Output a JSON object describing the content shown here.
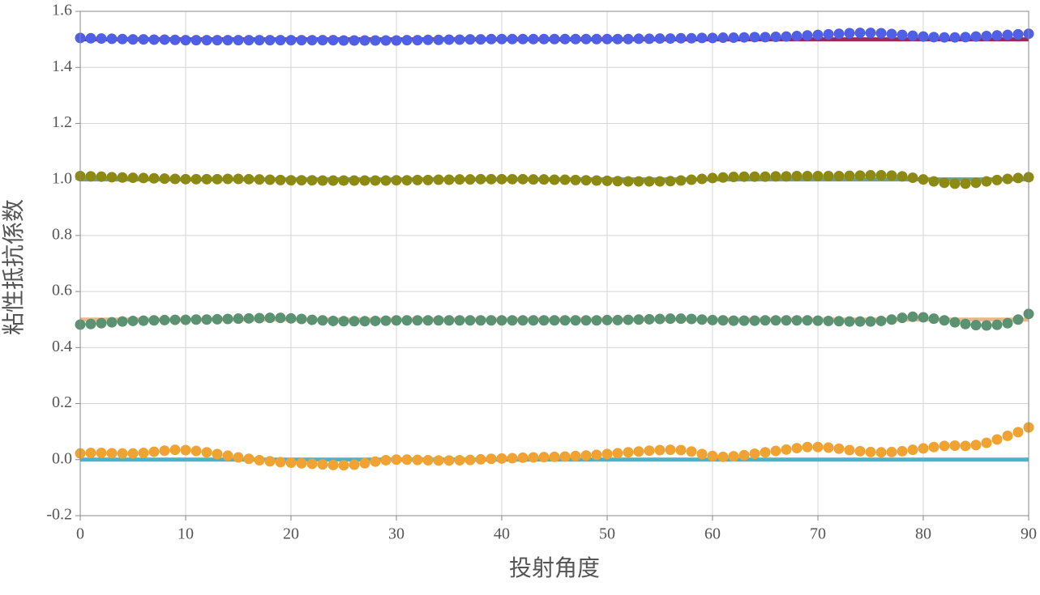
{
  "chart_data": {
    "type": "scatter",
    "x_label": "投射角度",
    "y_label": "粘性抵抗係数",
    "xlim": [
      0,
      90
    ],
    "xticks": [
      0,
      10,
      20,
      30,
      40,
      50,
      60,
      70,
      80,
      90
    ],
    "ylim": [
      -0.2,
      1.6
    ],
    "yticks": [
      -0.2,
      {
        "value": 0,
        "label": "0.0"
      },
      0.2,
      0.4,
      0.6,
      0.8,
      {
        "value": 1,
        "label": "1.0"
      },
      1.2,
      1.4,
      1.6
    ],
    "grid": true,
    "x": [
      0,
      1,
      2,
      3,
      4,
      5,
      6,
      7,
      8,
      9,
      10,
      11,
      12,
      13,
      14,
      15,
      16,
      17,
      18,
      19,
      20,
      21,
      22,
      23,
      24,
      25,
      26,
      27,
      28,
      29,
      30,
      31,
      32,
      33,
      34,
      35,
      36,
      37,
      38,
      39,
      40,
      41,
      42,
      43,
      44,
      45,
      46,
      47,
      48,
      49,
      50,
      51,
      52,
      53,
      54,
      55,
      56,
      57,
      58,
      59,
      60,
      61,
      62,
      63,
      64,
      65,
      66,
      67,
      68,
      69,
      70,
      71,
      72,
      73,
      74,
      75,
      76,
      77,
      78,
      79,
      80,
      81,
      82,
      83,
      84,
      85,
      86,
      87,
      88,
      89,
      90
    ],
    "series": [
      {
        "mode": "line",
        "color": "#9a2a5a",
        "x": [
          0,
          90
        ],
        "values": [
          1.5,
          1.5
        ]
      },
      {
        "mode": "line",
        "color": "#6f9e90",
        "x": [
          0,
          90
        ],
        "values": [
          1,
          1
        ]
      },
      {
        "mode": "line",
        "color": "#e8b88a",
        "x": [
          0,
          90
        ],
        "values": [
          0.5,
          0.5
        ]
      },
      {
        "mode": "line",
        "color": "#4db3c4",
        "x": [
          0,
          90
        ],
        "values": [
          0,
          0
        ]
      },
      {
        "mode": "markers",
        "color": "#5060e6",
        "values": [
          1.505,
          1.504,
          1.503,
          1.502,
          1.501,
          1.5,
          1.5,
          1.499,
          1.499,
          1.498,
          1.497,
          1.497,
          1.497,
          1.497,
          1.497,
          1.497,
          1.497,
          1.497,
          1.497,
          1.497,
          1.497,
          1.497,
          1.497,
          1.497,
          1.497,
          1.496,
          1.496,
          1.496,
          1.496,
          1.496,
          1.496,
          1.497,
          1.497,
          1.498,
          1.498,
          1.499,
          1.499,
          1.5,
          1.5,
          1.501,
          1.501,
          1.501,
          1.501,
          1.501,
          1.501,
          1.501,
          1.501,
          1.501,
          1.501,
          1.501,
          1.501,
          1.501,
          1.501,
          1.502,
          1.502,
          1.503,
          1.503,
          1.504,
          1.504,
          1.505,
          1.505,
          1.506,
          1.506,
          1.507,
          1.508,
          1.508,
          1.509,
          1.51,
          1.512,
          1.514,
          1.516,
          1.518,
          1.52,
          1.522,
          1.523,
          1.523,
          1.522,
          1.519,
          1.516,
          1.513,
          1.51,
          1.508,
          1.507,
          1.507,
          1.508,
          1.51,
          1.512,
          1.514,
          1.516,
          1.518,
          1.52
        ]
      },
      {
        "mode": "markers",
        "color": "#8c8a12",
        "values": [
          1.012,
          1.011,
          1.01,
          1.008,
          1.007,
          1.006,
          1.005,
          1.004,
          1.003,
          1.002,
          1.001,
          1.001,
          1.001,
          1.001,
          1.002,
          1.002,
          1.001,
          1,
          0.999,
          0.998,
          0.997,
          0.997,
          0.997,
          0.996,
          0.996,
          0.996,
          0.996,
          0.996,
          0.996,
          0.996,
          0.997,
          0.997,
          0.998,
          0.998,
          0.999,
          0.999,
          1,
          1,
          1.001,
          1.001,
          1.001,
          1.001,
          1.001,
          1,
          1,
          0.999,
          0.999,
          0.998,
          0.997,
          0.996,
          0.995,
          0.994,
          0.993,
          0.993,
          0.993,
          0.993,
          0.994,
          0.996,
          0.999,
          1.002,
          1.005,
          1.007,
          1.009,
          1.01,
          1.01,
          1.01,
          1.011,
          1.011,
          1.012,
          1.012,
          1.012,
          1.012,
          1.012,
          1.013,
          1.014,
          1.015,
          1.015,
          1.014,
          1.011,
          1.006,
          1,
          0.993,
          0.988,
          0.985,
          0.985,
          0.988,
          0.993,
          0.998,
          1.002,
          1.005,
          1.008
        ]
      },
      {
        "mode": "markers",
        "color": "#5a9272",
        "values": [
          0.482,
          0.484,
          0.487,
          0.49,
          0.493,
          0.495,
          0.496,
          0.497,
          0.498,
          0.499,
          0.499,
          0.5,
          0.5,
          0.501,
          0.502,
          0.503,
          0.504,
          0.505,
          0.506,
          0.506,
          0.504,
          0.502,
          0.499,
          0.497,
          0.495,
          0.494,
          0.494,
          0.494,
          0.495,
          0.496,
          0.497,
          0.497,
          0.497,
          0.497,
          0.497,
          0.497,
          0.497,
          0.497,
          0.497,
          0.497,
          0.497,
          0.497,
          0.497,
          0.497,
          0.497,
          0.497,
          0.497,
          0.497,
          0.497,
          0.497,
          0.498,
          0.498,
          0.499,
          0.5,
          0.501,
          0.502,
          0.503,
          0.503,
          0.502,
          0.5,
          0.498,
          0.497,
          0.496,
          0.496,
          0.496,
          0.497,
          0.497,
          0.497,
          0.497,
          0.497,
          0.496,
          0.495,
          0.494,
          0.493,
          0.493,
          0.493,
          0.495,
          0.5,
          0.506,
          0.51,
          0.508,
          0.503,
          0.497,
          0.49,
          0.484,
          0.48,
          0.479,
          0.481,
          0.487,
          0.5,
          0.52
        ]
      },
      {
        "mode": "markers",
        "color": "#f0a232",
        "values": [
          0.022,
          0.024,
          0.024,
          0.023,
          0.022,
          0.022,
          0.024,
          0.028,
          0.032,
          0.035,
          0.034,
          0.031,
          0.026,
          0.02,
          0.014,
          0.008,
          0.003,
          -0.002,
          -0.006,
          -0.009,
          -0.011,
          -0.013,
          -0.015,
          -0.017,
          -0.019,
          -0.02,
          -0.018,
          -0.013,
          -0.007,
          -0.002,
          0,
          0,
          -0.001,
          -0.002,
          -0.003,
          -0.003,
          -0.002,
          -0.001,
          0.001,
          0.003,
          0.004,
          0.005,
          0.007,
          0.008,
          0.009,
          0.01,
          0.011,
          0.013,
          0.015,
          0.017,
          0.02,
          0.023,
          0.026,
          0.029,
          0.032,
          0.034,
          0.035,
          0.034,
          0.029,
          0.02,
          0.013,
          0.01,
          0.012,
          0.016,
          0.021,
          0.026,
          0.031,
          0.036,
          0.041,
          0.045,
          0.045,
          0.043,
          0.039,
          0.034,
          0.03,
          0.027,
          0.026,
          0.027,
          0.03,
          0.035,
          0.04,
          0.045,
          0.049,
          0.05,
          0.049,
          0.052,
          0.06,
          0.072,
          0.085,
          0.098,
          0.115
        ]
      }
    ]
  }
}
